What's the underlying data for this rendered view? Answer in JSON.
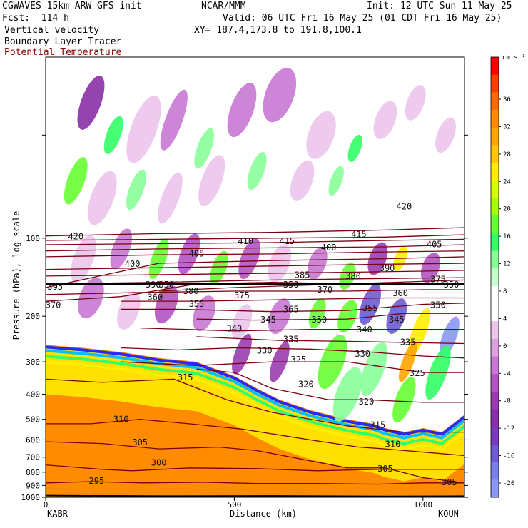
{
  "header": {
    "model_line": "CGWAVES 15km ARW-GFS init",
    "org": "NCAR/MMM",
    "init": "Init: 12 UTC Sun 11 May 25",
    "fcst": "Fcst:  114 h",
    "valid": "Valid: 06 UTC Fri 16 May 25 (01 CDT Fri 16 May 25)",
    "field1": "Vertical velocity",
    "xy": "XY= 187.4,173.8 to 191.8,100.1",
    "field2": "Boundary Layer Tracer",
    "field3": "Potential Temperature"
  },
  "colors": {
    "theta_contour": "#7a0010",
    "field3_text": "#8b0000",
    "terrain": "#000000"
  },
  "chart_data": {
    "type": "heatmap",
    "title": "Vertical velocity",
    "xlabel": "Distance (km)",
    "ylabel": "Pressure (hPa), log scale",
    "x_ticks": [
      "0",
      "500",
      "1000"
    ],
    "xlim": [
      0,
      1110
    ],
    "y_ticks": [
      "100",
      "200",
      "300",
      "400",
      "500",
      "600",
      "700",
      "800",
      "900",
      "1000"
    ],
    "ylim_hpa": [
      1000,
      20
    ],
    "y_scale": "log",
    "endpoints": {
      "left": "KABR",
      "right": "KOUN"
    },
    "colorbar": {
      "units": "cm s⁻¹",
      "labels": [
        "36",
        "32",
        "28",
        "24",
        "20",
        "16",
        "12",
        "8",
        "4",
        "0",
        "-4",
        "-8",
        "-12",
        "-16",
        "-20"
      ],
      "colors": [
        "#ff0000",
        "#ff3c00",
        "#ff6a00",
        "#ff8c00",
        "#ffa500",
        "#ffc800",
        "#ffee00",
        "#d8ff00",
        "#a8ff00",
        "#66ff33",
        "#33ff66",
        "#88ff99",
        "#c8ffcc",
        "#ffffff",
        "#ffffff",
        "#ecc5ec",
        "#dd9fe0",
        "#c878d4",
        "#b155c2",
        "#9a3db0",
        "#8a2fa6",
        "#7a3aba",
        "#6f5bd0",
        "#7a80e8",
        "#8a98f2"
      ]
    },
    "theta_contours": [
      {
        "label": "295",
        "x": [
          0,
          120,
          260,
          420,
          560,
          720,
          880,
          1000,
          1110
        ],
        "p": [
          880,
          870,
          880,
          875,
          885,
          885,
          890,
          880,
          880
        ]
      },
      {
        "label": "300",
        "x": [
          0,
          150,
          230,
          380,
          560,
          720,
          880,
          1110
        ],
        "p": [
          750,
          780,
          790,
          770,
          775,
          790,
          780,
          780
        ]
      },
      {
        "label": "305",
        "x": [
          0,
          150,
          300,
          460,
          560,
          800,
          900,
          1000,
          1110
        ],
        "p": [
          610,
          620,
          650,
          640,
          660,
          770,
          770,
          840,
          880
        ]
      },
      {
        "label": "310",
        "x": [
          0,
          120,
          250,
          380,
          520,
          700,
          830,
          900,
          1110
        ],
        "p": [
          520,
          520,
          500,
          520,
          545,
          600,
          640,
          650,
          690
        ]
      },
      {
        "label": "315",
        "x": [
          0,
          150,
          340,
          480,
          600,
          800,
          950,
          1110
        ],
        "p": [
          350,
          360,
          350,
          420,
          470,
          530,
          560,
          560
        ]
      },
      {
        "label": "320",
        "x": [
          400,
          500,
          600,
          750,
          850,
          1000,
          1110
        ],
        "p": [
          320,
          330,
          380,
          420,
          420,
          430,
          430
        ]
      },
      {
        "label": "325",
        "x": [
          200,
          400,
          600,
          800,
          1000,
          1110
        ],
        "p": [
          300,
          310,
          300,
          300,
          330,
          330
        ]
      },
      {
        "label": "330",
        "x": [
          200,
          350,
          500,
          700,
          860,
          1000,
          1110
        ],
        "p": [
          265,
          270,
          265,
          268,
          275,
          285,
          290
        ]
      },
      {
        "label": "335",
        "x": [
          400,
          620,
          800,
          1110
        ],
        "p": [
          240,
          248,
          250,
          255
        ]
      },
      {
        "label": "340",
        "x": [
          250,
          500,
          700,
          850,
          1110
        ],
        "p": [
          222,
          228,
          225,
          225,
          225
        ]
      },
      {
        "label": "345",
        "x": [
          400,
          550,
          800,
          950,
          1110
        ],
        "p": [
          205,
          207,
          205,
          195,
          195
        ]
      },
      {
        "label": "350",
        "x": [
          200,
          350,
          600,
          800,
          1000,
          1110
        ],
        "p": [
          188,
          188,
          192,
          190,
          180,
          178
        ]
      },
      {
        "label": "355",
        "x": [
          200,
          400,
          700,
          900,
          1110
        ],
        "p": [
          175,
          175,
          172,
          170,
          170
        ]
      },
      {
        "label": "360",
        "x": [
          0,
          250,
          500,
          800,
          1000,
          1110
        ],
        "p": [
          165,
          162,
          160,
          160,
          158,
          158
        ]
      },
      {
        "label": "370",
        "x": [
          0,
          200,
          400,
          600,
          800,
          1110
        ],
        "p": [
          175,
          168,
          150,
          148,
          150,
          145
        ]
      },
      {
        "label": "375",
        "x": [
          300,
          500,
          800,
          1110
        ],
        "p": [
          160,
          155,
          150,
          150
        ]
      },
      {
        "label": "380",
        "x": [
          0,
          300,
          600,
          900,
          1110
        ],
        "p": [
          150,
          148,
          145,
          143,
          142
        ]
      },
      {
        "label": "385",
        "x": [
          0,
          350,
          700,
          1000,
          1110
        ],
        "p": [
          140,
          138,
          136,
          134,
          133
        ]
      },
      {
        "label": "390",
        "x": [
          0,
          300,
          600,
          900,
          1110
        ],
        "p": [
          132,
          130,
          128,
          126,
          125
        ]
      },
      {
        "label": "395",
        "x": [
          0,
          300,
          600,
          900,
          1110
        ],
        "p": [
          155,
          125,
          122,
          120,
          118
        ]
      },
      {
        "label": "400",
        "x": [
          0,
          300,
          600,
          900,
          1110
        ],
        "p": [
          118,
          116,
          115,
          113,
          112
        ]
      },
      {
        "label": "405",
        "x": [
          0,
          300,
          600,
          900,
          1110
        ],
        "p": [
          112,
          110,
          109,
          108,
          106
        ]
      },
      {
        "label": "410",
        "x": [
          0,
          300,
          600,
          900,
          1110
        ],
        "p": [
          106,
          105,
          104,
          102,
          101
        ]
      },
      {
        "label": "415",
        "x": [
          0,
          300,
          600,
          900,
          1110
        ],
        "p": [
          102,
          101,
          100,
          99,
          97
        ]
      },
      {
        "label": "420",
        "x": [
          0,
          300,
          600,
          900,
          1110
        ],
        "p": [
          98,
          96,
          95,
          93,
          91
        ]
      }
    ],
    "contour_labels": [
      {
        "text": "420",
        "x": 80,
        "p": 98
      },
      {
        "text": "395",
        "x": 25,
        "p": 153
      },
      {
        "text": "370",
        "x": 20,
        "p": 180
      },
      {
        "text": "400",
        "x": 230,
        "p": 125
      },
      {
        "text": "390",
        "x": 285,
        "p": 150
      },
      {
        "text": "360",
        "x": 290,
        "p": 168
      },
      {
        "text": "355",
        "x": 400,
        "p": 178
      },
      {
        "text": "380",
        "x": 385,
        "p": 159
      },
      {
        "text": "405",
        "x": 400,
        "p": 114
      },
      {
        "text": "410",
        "x": 530,
        "p": 102
      },
      {
        "text": "375",
        "x": 520,
        "p": 165
      },
      {
        "text": "340",
        "x": 500,
        "p": 222
      },
      {
        "text": "345",
        "x": 590,
        "p": 205
      },
      {
        "text": "365",
        "x": 650,
        "p": 187
      },
      {
        "text": "415",
        "x": 640,
        "p": 102
      },
      {
        "text": "385",
        "x": 680,
        "p": 138
      },
      {
        "text": "400",
        "x": 750,
        "p": 108
      },
      {
        "text": "415",
        "x": 830,
        "p": 96
      },
      {
        "text": "370",
        "x": 740,
        "p": 157
      },
      {
        "text": "350",
        "x": 725,
        "p": 205
      },
      {
        "text": "335",
        "x": 650,
        "p": 244
      },
      {
        "text": "330",
        "x": 580,
        "p": 270
      },
      {
        "text": "325",
        "x": 670,
        "p": 292
      },
      {
        "text": "320",
        "x": 690,
        "p": 364
      },
      {
        "text": "315",
        "x": 370,
        "p": 343
      },
      {
        "text": "310",
        "x": 200,
        "p": 496
      },
      {
        "text": "305",
        "x": 250,
        "p": 610
      },
      {
        "text": "300",
        "x": 300,
        "p": 730
      },
      {
        "text": "295",
        "x": 135,
        "p": 860
      },
      {
        "text": "380",
        "x": 815,
        "p": 139
      },
      {
        "text": "390",
        "x": 905,
        "p": 130
      },
      {
        "text": "360",
        "x": 940,
        "p": 162
      },
      {
        "text": "355",
        "x": 860,
        "p": 185
      },
      {
        "text": "345",
        "x": 930,
        "p": 205
      },
      {
        "text": "340",
        "x": 845,
        "p": 224
      },
      {
        "text": "330",
        "x": 840,
        "p": 278
      },
      {
        "text": "335",
        "x": 960,
        "p": 250
      },
      {
        "text": "325",
        "x": 985,
        "p": 330
      },
      {
        "text": "320",
        "x": 850,
        "p": 425
      },
      {
        "text": "315",
        "x": 880,
        "p": 522
      },
      {
        "text": "310",
        "x": 920,
        "p": 620
      },
      {
        "text": "305",
        "x": 900,
        "p": 770
      },
      {
        "text": "305",
        "x": 1070,
        "p": 870
      },
      {
        "text": "420",
        "x": 950,
        "p": 75
      },
      {
        "text": "405",
        "x": 1030,
        "p": 105
      },
      {
        "text": "375",
        "x": 1040,
        "p": 143
      },
      {
        "text": "350",
        "x": 1040,
        "p": 180
      },
      {
        "text": "350",
        "x": 650,
        "p": 150
      },
      {
        "text": "350",
        "x": 320,
        "p": 150
      },
      {
        "text": "350",
        "x": 1075,
        "p": 150
      }
    ]
  }
}
